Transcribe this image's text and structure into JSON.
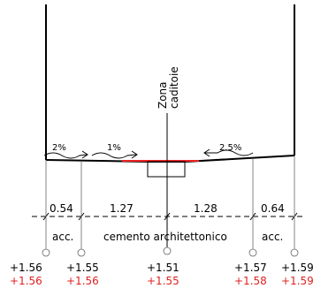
{
  "zone_label": {
    "line1": "Zona",
    "line2": "caditoie"
  },
  "slopes": [
    "2%",
    "1%",
    "2.5%"
  ],
  "dimensions": [
    "0.54",
    "1.27",
    "1.28",
    "0.64"
  ],
  "materials": {
    "left": "acc.",
    "center": "cemento architettonico",
    "right": "acc."
  },
  "elevations": [
    {
      "black": "+1.56",
      "red": "+1.56"
    },
    {
      "black": "+1.55",
      "red": "+1.56"
    },
    {
      "black": "+1.51",
      "red": "+1.55"
    },
    {
      "black": "+1.57",
      "red": "+1.58"
    },
    {
      "black": "+1.59",
      "red": "+1.59"
    }
  ],
  "colors": {
    "drawing": "#000000",
    "highlight": "#e02020"
  }
}
